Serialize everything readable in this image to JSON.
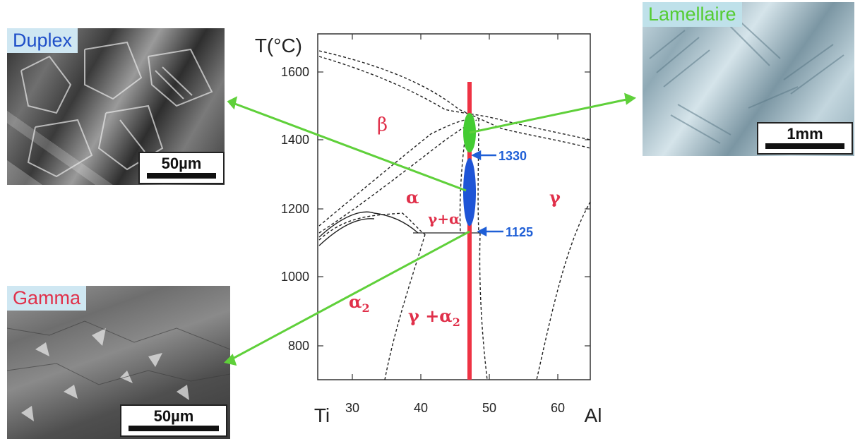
{
  "micrographs": {
    "duplex": {
      "label": "Duplex",
      "label_color": "#1f4fc8",
      "scale": "50µm"
    },
    "gamma": {
      "label": "Gamma",
      "label_color": "#e0304a",
      "scale": "50µm"
    },
    "lamellaire": {
      "label": "Lamellaire",
      "label_color": "#55cc33",
      "scale": "1mm"
    }
  },
  "phase_diagram": {
    "y_axis_label": "T(°C)",
    "y_ticks": [
      "1600",
      "1400",
      "1200",
      "1000",
      "800"
    ],
    "x_ticks": [
      "30",
      "40",
      "50",
      "60"
    ],
    "x_left_label": "Ti",
    "x_right_label": "Al",
    "phases": {
      "beta": "β",
      "alpha": "α",
      "gamma": "γ",
      "gamma_alpha": "γ+α",
      "alpha2": "α",
      "alpha2_sub": "2",
      "gamma_alpha2": "γ +α",
      "gamma_alpha2_sub": "2"
    },
    "temperatures": {
      "t1": "1330",
      "t2": "1125"
    },
    "colors": {
      "phase_text": "#e0304a",
      "temp_text": "#1f5fd6",
      "composition_line": "#ee3344",
      "ellipse_green": "#44cc33",
      "ellipse_blue": "#1f55d6",
      "arrow_green": "#5fd03a"
    }
  }
}
